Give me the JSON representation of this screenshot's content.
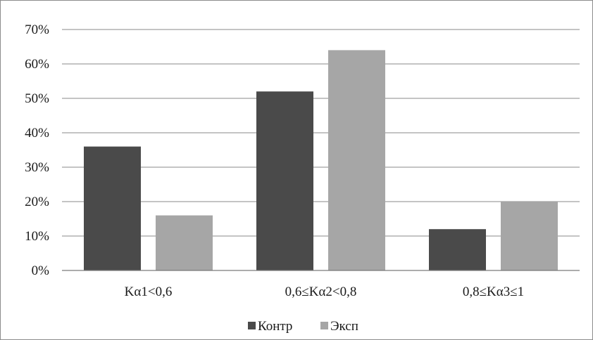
{
  "chart_data": {
    "type": "bar",
    "categories": [
      "Kα1<0,6",
      "0,6≤Kα2<0,8",
      "0,8≤Kα3≤1"
    ],
    "series": [
      {
        "name": "Контр",
        "values": [
          36,
          52,
          12
        ],
        "color": "#4a4a4a"
      },
      {
        "name": "Эксп",
        "values": [
          16,
          64,
          20
        ],
        "color": "#a6a6a6"
      }
    ],
    "ylim": [
      0,
      70
    ],
    "ytick_values": [
      0,
      10,
      20,
      30,
      40,
      50,
      60,
      70
    ],
    "ytick_labels": [
      "0%",
      "10%",
      "20%",
      "30%",
      "40%",
      "50%",
      "60%",
      "70%"
    ],
    "grid": true,
    "legend_position": "bottom"
  }
}
